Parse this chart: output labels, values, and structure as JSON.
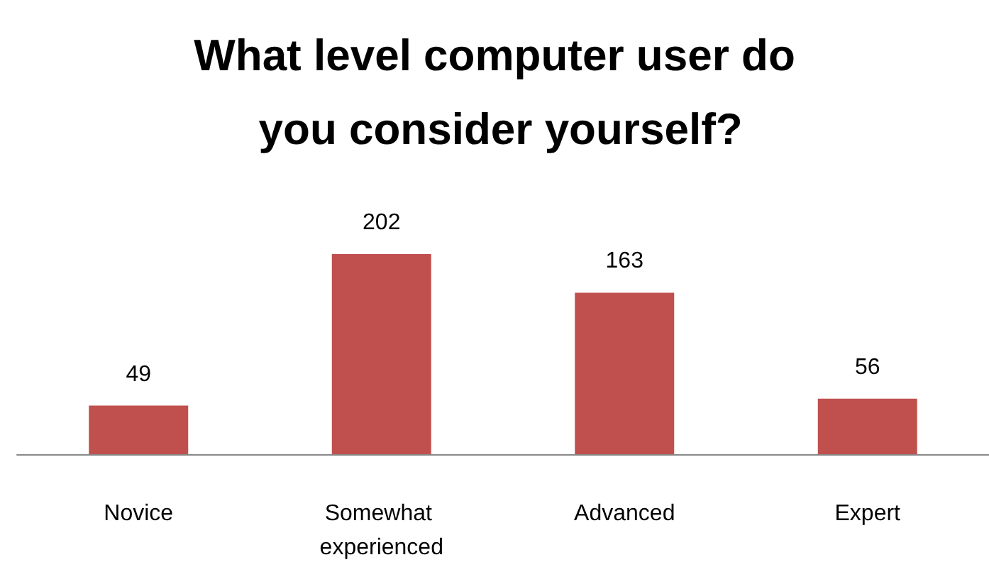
{
  "chart_data": {
    "type": "bar",
    "title": "What level computer user do you consider yourself?",
    "categories": [
      "Novice",
      "Somewhat experienced",
      "Advanced",
      "Expert"
    ],
    "values": [
      49,
      202,
      163,
      56
    ],
    "color": "#c0504d",
    "data_labels": true
  }
}
